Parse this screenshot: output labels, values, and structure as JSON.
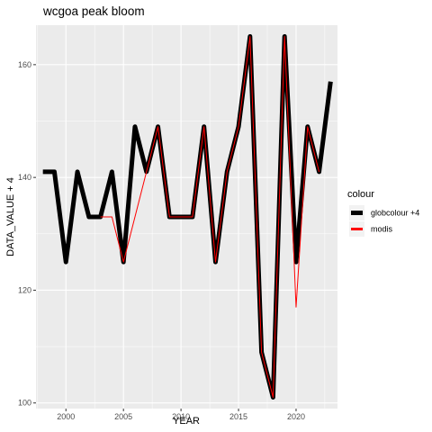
{
  "chart_data": {
    "type": "line",
    "title": "wcgoa peak bloom",
    "xlabel": "YEAR",
    "ylabel": "DATA_VALUE + 4",
    "xlim": [
      1997.4,
      2023.6
    ],
    "ylim": [
      99,
      167
    ],
    "x_ticks": [
      2000,
      2005,
      2010,
      2015,
      2020
    ],
    "y_ticks": [
      100,
      120,
      140,
      160
    ],
    "grid": true,
    "legend": {
      "title": "colour",
      "position": "right",
      "entries": [
        {
          "label": "globcolour +4",
          "color": "#000000"
        },
        {
          "label": "modis",
          "color": "#ff0000"
        }
      ]
    },
    "series": [
      {
        "name": "globcolour +4",
        "color": "#000000",
        "x": [
          1998,
          1999,
          2000,
          2001,
          2002,
          2003,
          2004,
          2005,
          2006,
          2007,
          2008,
          2009,
          2010,
          2011,
          2012,
          2013,
          2014,
          2015,
          2016,
          2017,
          2018,
          2019,
          2020,
          2021,
          2022,
          2023
        ],
        "y": [
          141,
          141,
          125,
          141,
          133,
          133,
          141,
          125,
          149,
          141,
          149,
          133,
          133,
          133,
          149,
          125,
          141,
          149,
          165,
          109,
          101,
          165,
          125,
          149,
          141,
          157
        ]
      },
      {
        "name": "modis",
        "color": "#ff0000",
        "x": [
          2003,
          2004,
          2005,
          2007,
          2008,
          2009,
          2010,
          2011,
          2012,
          2013,
          2014,
          2015,
          2016,
          2017,
          2018,
          2019,
          2020,
          2021,
          2022
        ],
        "y": [
          133,
          133,
          125,
          141,
          149,
          133,
          133,
          133,
          149,
          125,
          141,
          149,
          165,
          109,
          101,
          165,
          117,
          149,
          141
        ]
      }
    ]
  }
}
